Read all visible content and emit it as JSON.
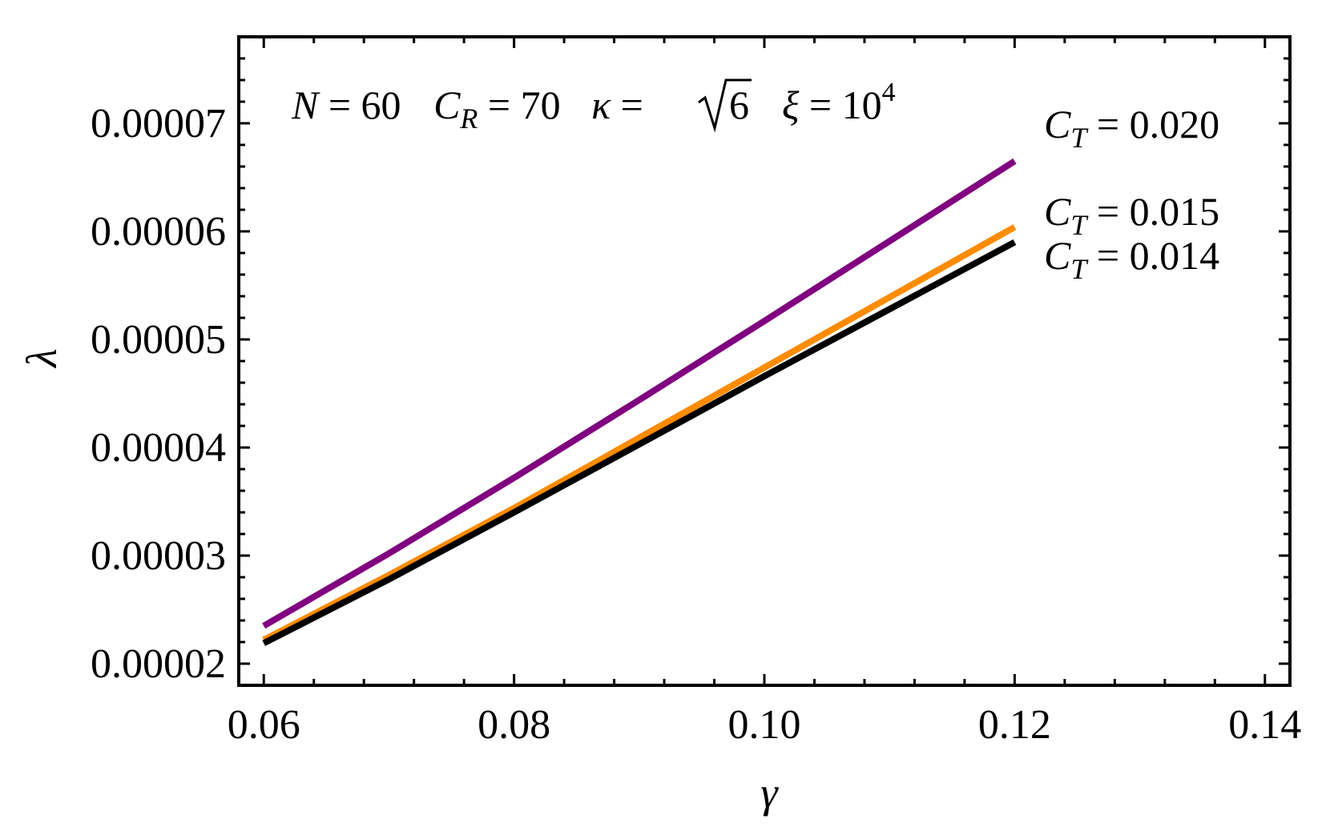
{
  "chart_data": {
    "type": "line",
    "title": "",
    "xlabel": "γ",
    "ylabel": "λ",
    "xlim": [
      0.058,
      0.142
    ],
    "ylim": [
      1.8e-05,
      7.8e-05
    ],
    "x_ticks": [
      0.06,
      0.08,
      0.1,
      0.12,
      0.14
    ],
    "x_tick_labels": [
      "0.06",
      "0.08",
      "0.10",
      "0.12",
      "0.14"
    ],
    "y_ticks": [
      2e-05,
      3e-05,
      4e-05,
      5e-05,
      6e-05,
      7e-05
    ],
    "y_tick_labels": [
      "0.00002",
      "0.00003",
      "0.00004",
      "0.00005",
      "0.00006",
      "0.00007"
    ],
    "grid": false,
    "frame": true,
    "annotation": {
      "N": "N",
      "N_val": "= 60",
      "CR": "C",
      "CR_sub": "R",
      "CR_val": "= 70",
      "kappa": "κ",
      "kappa_eq": "=",
      "kappa_val": "6",
      "xi": "ξ",
      "xi_val": "= 10",
      "xi_exp": "4"
    },
    "series": [
      {
        "name": "C_T = 0.020",
        "label_main": "C",
        "label_sub": "T",
        "label_val": "= 0.020",
        "color": "#800080",
        "x": [
          0.06,
          0.07,
          0.08,
          0.09,
          0.1,
          0.11,
          0.12
        ],
        "y": [
          2.35e-05,
          3.02e-05,
          3.72e-05,
          4.44e-05,
          5.17e-05,
          5.91e-05,
          6.65e-05
        ]
      },
      {
        "name": "C_T = 0.015",
        "label_main": "C",
        "label_sub": "T",
        "label_val": "= 0.015",
        "color": "#ff8c00",
        "x": [
          0.06,
          0.07,
          0.08,
          0.09,
          0.1,
          0.11,
          0.12
        ],
        "y": [
          2.22e-05,
          2.82e-05,
          3.44e-05,
          4.09e-05,
          4.74e-05,
          5.39e-05,
          6.04e-05
        ]
      },
      {
        "name": "C_T = 0.014",
        "label_main": "C",
        "label_sub": "T",
        "label_val": "= 0.014",
        "color": "#000000",
        "x": [
          0.06,
          0.07,
          0.08,
          0.09,
          0.1,
          0.11,
          0.12
        ],
        "y": [
          2.19e-05,
          2.78e-05,
          3.4e-05,
          4.03e-05,
          4.66e-05,
          5.28e-05,
          5.9e-05
        ]
      }
    ]
  }
}
